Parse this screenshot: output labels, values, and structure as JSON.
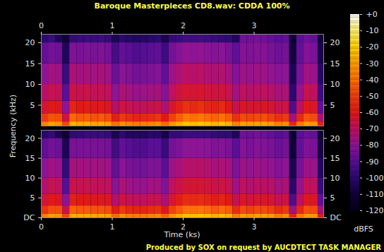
{
  "chart_data": {
    "type": "heatmap",
    "title": "Baroque Masterpieces CD8.wav: CDDA 100%",
    "caption": "Produced by SOX on request by AUCDTECT TASK MANAGER",
    "x_label": "Time (ks)",
    "y_label": "Frequency (kHz)",
    "xlim": [
      0,
      3.98
    ],
    "xticks": [
      0,
      1,
      2,
      3
    ],
    "ylim": [
      0,
      22.05
    ],
    "time_bins": [
      0,
      0.1,
      0.2,
      0.3,
      0.4,
      0.5,
      0.6,
      0.7,
      0.8,
      0.9,
      1.0,
      1.1,
      1.2,
      1.3,
      1.4,
      1.5,
      1.6,
      1.7,
      1.8,
      1.9,
      2.0,
      2.1,
      2.2,
      2.3,
      2.4,
      2.5,
      2.6,
      2.7,
      2.8,
      2.9,
      3.0,
      3.1,
      3.2,
      3.3,
      3.4,
      3.5,
      3.6,
      3.7,
      3.8,
      3.9,
      3.98
    ],
    "freq_bins": [
      0,
      1,
      3,
      6,
      10,
      15,
      20,
      22.05
    ],
    "channels": [
      {
        "yticks": [
          5,
          10,
          15,
          20
        ],
        "cells": [
          [
            -36,
            -30,
            -32,
            -48,
            -26,
            -28,
            -27,
            -29,
            -28,
            -30,
            -40,
            -33,
            -36,
            -38,
            -37,
            -36,
            -34,
            -42,
            -32,
            -27,
            -22,
            -24,
            -22,
            -24,
            -26,
            -23,
            -26,
            -36,
            -30,
            -31,
            -30,
            -29,
            -31,
            -36,
            -34,
            -56,
            -38,
            -30,
            -32,
            -58
          ],
          [
            -52,
            -46,
            -47,
            -66,
            -42,
            -45,
            -44,
            -46,
            -45,
            -47,
            -58,
            -52,
            -55,
            -57,
            -56,
            -55,
            -53,
            -60,
            -50,
            -44,
            -38,
            -40,
            -38,
            -41,
            -43,
            -40,
            -44,
            -54,
            -48,
            -49,
            -48,
            -47,
            -50,
            -54,
            -52,
            -76,
            -56,
            -46,
            -48,
            -74
          ],
          [
            -64,
            -60,
            -61,
            -80,
            -57,
            -60,
            -59,
            -61,
            -60,
            -62,
            -72,
            -66,
            -68,
            -70,
            -69,
            -68,
            -67,
            -74,
            -63,
            -58,
            -54,
            -56,
            -54,
            -57,
            -58,
            -56,
            -60,
            -68,
            -62,
            -64,
            -63,
            -62,
            -64,
            -68,
            -66,
            -92,
            -70,
            -60,
            -62,
            -88
          ],
          [
            -72,
            -68,
            -69,
            -90,
            -66,
            -68,
            -67,
            -69,
            -68,
            -70,
            -80,
            -74,
            -76,
            -78,
            -77,
            -76,
            -75,
            -82,
            -70,
            -66,
            -63,
            -64,
            -63,
            -65,
            -66,
            -65,
            -68,
            -76,
            -70,
            -72,
            -71,
            -70,
            -72,
            -75,
            -74,
            -100,
            -78,
            -68,
            -70,
            -96
          ],
          [
            -80,
            -76,
            -77,
            -97,
            -74,
            -76,
            -75,
            -76,
            -75,
            -77,
            -87,
            -81,
            -83,
            -85,
            -84,
            -83,
            -82,
            -89,
            -77,
            -74,
            -71,
            -72,
            -71,
            -73,
            -74,
            -73,
            -76,
            -82,
            -77,
            -78,
            -77,
            -77,
            -79,
            -81,
            -80,
            -105,
            -84,
            -76,
            -78,
            -102
          ],
          [
            -88,
            -85,
            -86,
            -104,
            -83,
            -84,
            -83,
            -84,
            -83,
            -85,
            -94,
            -88,
            -90,
            -92,
            -91,
            -90,
            -89,
            -96,
            -85,
            -82,
            -79,
            -80,
            -79,
            -81,
            -82,
            -81,
            -84,
            -89,
            -82,
            -83,
            -82,
            -82,
            -84,
            -86,
            -85,
            -109,
            -88,
            -82,
            -84,
            -107
          ],
          [
            -100,
            -97,
            -104,
            -110,
            -98,
            -97,
            -96,
            -97,
            -96,
            -98,
            -105,
            -100,
            -102,
            -103,
            -102,
            -101,
            -100,
            -106,
            -98,
            -97,
            -95,
            -96,
            -95,
            -96,
            -97,
            -98,
            -99,
            -103,
            -86,
            -86,
            -85,
            -86,
            -88,
            -90,
            -89,
            -112,
            -90,
            -86,
            -88,
            -110
          ]
        ]
      },
      {
        "yticks": [
          {
            "value": 0,
            "label": "DC"
          },
          5,
          10,
          15,
          20
        ],
        "cells": [
          [
            -37,
            -31,
            -32,
            -49,
            -27,
            -28,
            -28,
            -29,
            -29,
            -30,
            -41,
            -33,
            -37,
            -38,
            -38,
            -36,
            -35,
            -43,
            -32,
            -28,
            -23,
            -24,
            -23,
            -24,
            -27,
            -24,
            -26,
            -37,
            -30,
            -32,
            -30,
            -30,
            -31,
            -37,
            -34,
            -57,
            -38,
            -31,
            -32,
            -59
          ],
          [
            -53,
            -47,
            -47,
            -67,
            -43,
            -45,
            -45,
            -46,
            -46,
            -47,
            -59,
            -52,
            -56,
            -57,
            -57,
            -55,
            -54,
            -61,
            -50,
            -45,
            -39,
            -40,
            -39,
            -41,
            -44,
            -41,
            -44,
            -55,
            -48,
            -50,
            -48,
            -48,
            -50,
            -55,
            -52,
            -77,
            -56,
            -47,
            -48,
            -75
          ],
          [
            -65,
            -60,
            -62,
            -81,
            -58,
            -60,
            -60,
            -61,
            -61,
            -62,
            -73,
            -66,
            -69,
            -70,
            -70,
            -68,
            -68,
            -75,
            -63,
            -59,
            -55,
            -56,
            -55,
            -57,
            -59,
            -57,
            -60,
            -69,
            -62,
            -65,
            -63,
            -63,
            -64,
            -69,
            -66,
            -93,
            -70,
            -61,
            -62,
            -89
          ],
          [
            -73,
            -68,
            -70,
            -91,
            -67,
            -68,
            -68,
            -69,
            -69,
            -70,
            -81,
            -74,
            -77,
            -78,
            -78,
            -76,
            -76,
            -83,
            -70,
            -67,
            -64,
            -64,
            -64,
            -65,
            -67,
            -66,
            -68,
            -77,
            -70,
            -73,
            -71,
            -71,
            -72,
            -76,
            -74,
            -101,
            -78,
            -69,
            -70,
            -97
          ],
          [
            -81,
            -76,
            -78,
            -98,
            -75,
            -76,
            -76,
            -76,
            -76,
            -77,
            -88,
            -81,
            -84,
            -85,
            -85,
            -83,
            -83,
            -90,
            -77,
            -75,
            -72,
            -72,
            -72,
            -73,
            -75,
            -74,
            -76,
            -83,
            -77,
            -79,
            -77,
            -78,
            -79,
            -82,
            -80,
            -106,
            -84,
            -77,
            -78,
            -103
          ],
          [
            -89,
            -85,
            -87,
            -105,
            -84,
            -84,
            -84,
            -84,
            -84,
            -85,
            -95,
            -88,
            -91,
            -92,
            -92,
            -90,
            -90,
            -97,
            -85,
            -83,
            -80,
            -80,
            -80,
            -81,
            -83,
            -82,
            -84,
            -90,
            -82,
            -84,
            -82,
            -83,
            -84,
            -87,
            -85,
            -110,
            -88,
            -83,
            -84,
            -108
          ],
          [
            -101,
            -98,
            -105,
            -111,
            -99,
            -98,
            -97,
            -97,
            -97,
            -98,
            -106,
            -100,
            -103,
            -103,
            -103,
            -101,
            -101,
            -107,
            -98,
            -98,
            -96,
            -96,
            -96,
            -96,
            -98,
            -99,
            -99,
            -104,
            -86,
            -87,
            -85,
            -87,
            -88,
            -91,
            -89,
            -113,
            -90,
            -87,
            -88,
            -111
          ]
        ]
      }
    ],
    "colorbar": {
      "label": "dBFS",
      "range": [
        -120,
        0
      ],
      "ticks": [
        {
          "value": 0,
          "label": "+0"
        },
        -10,
        -20,
        -30,
        -40,
        -50,
        -60,
        -70,
        -80,
        -90,
        -100,
        -110,
        -120
      ]
    }
  }
}
